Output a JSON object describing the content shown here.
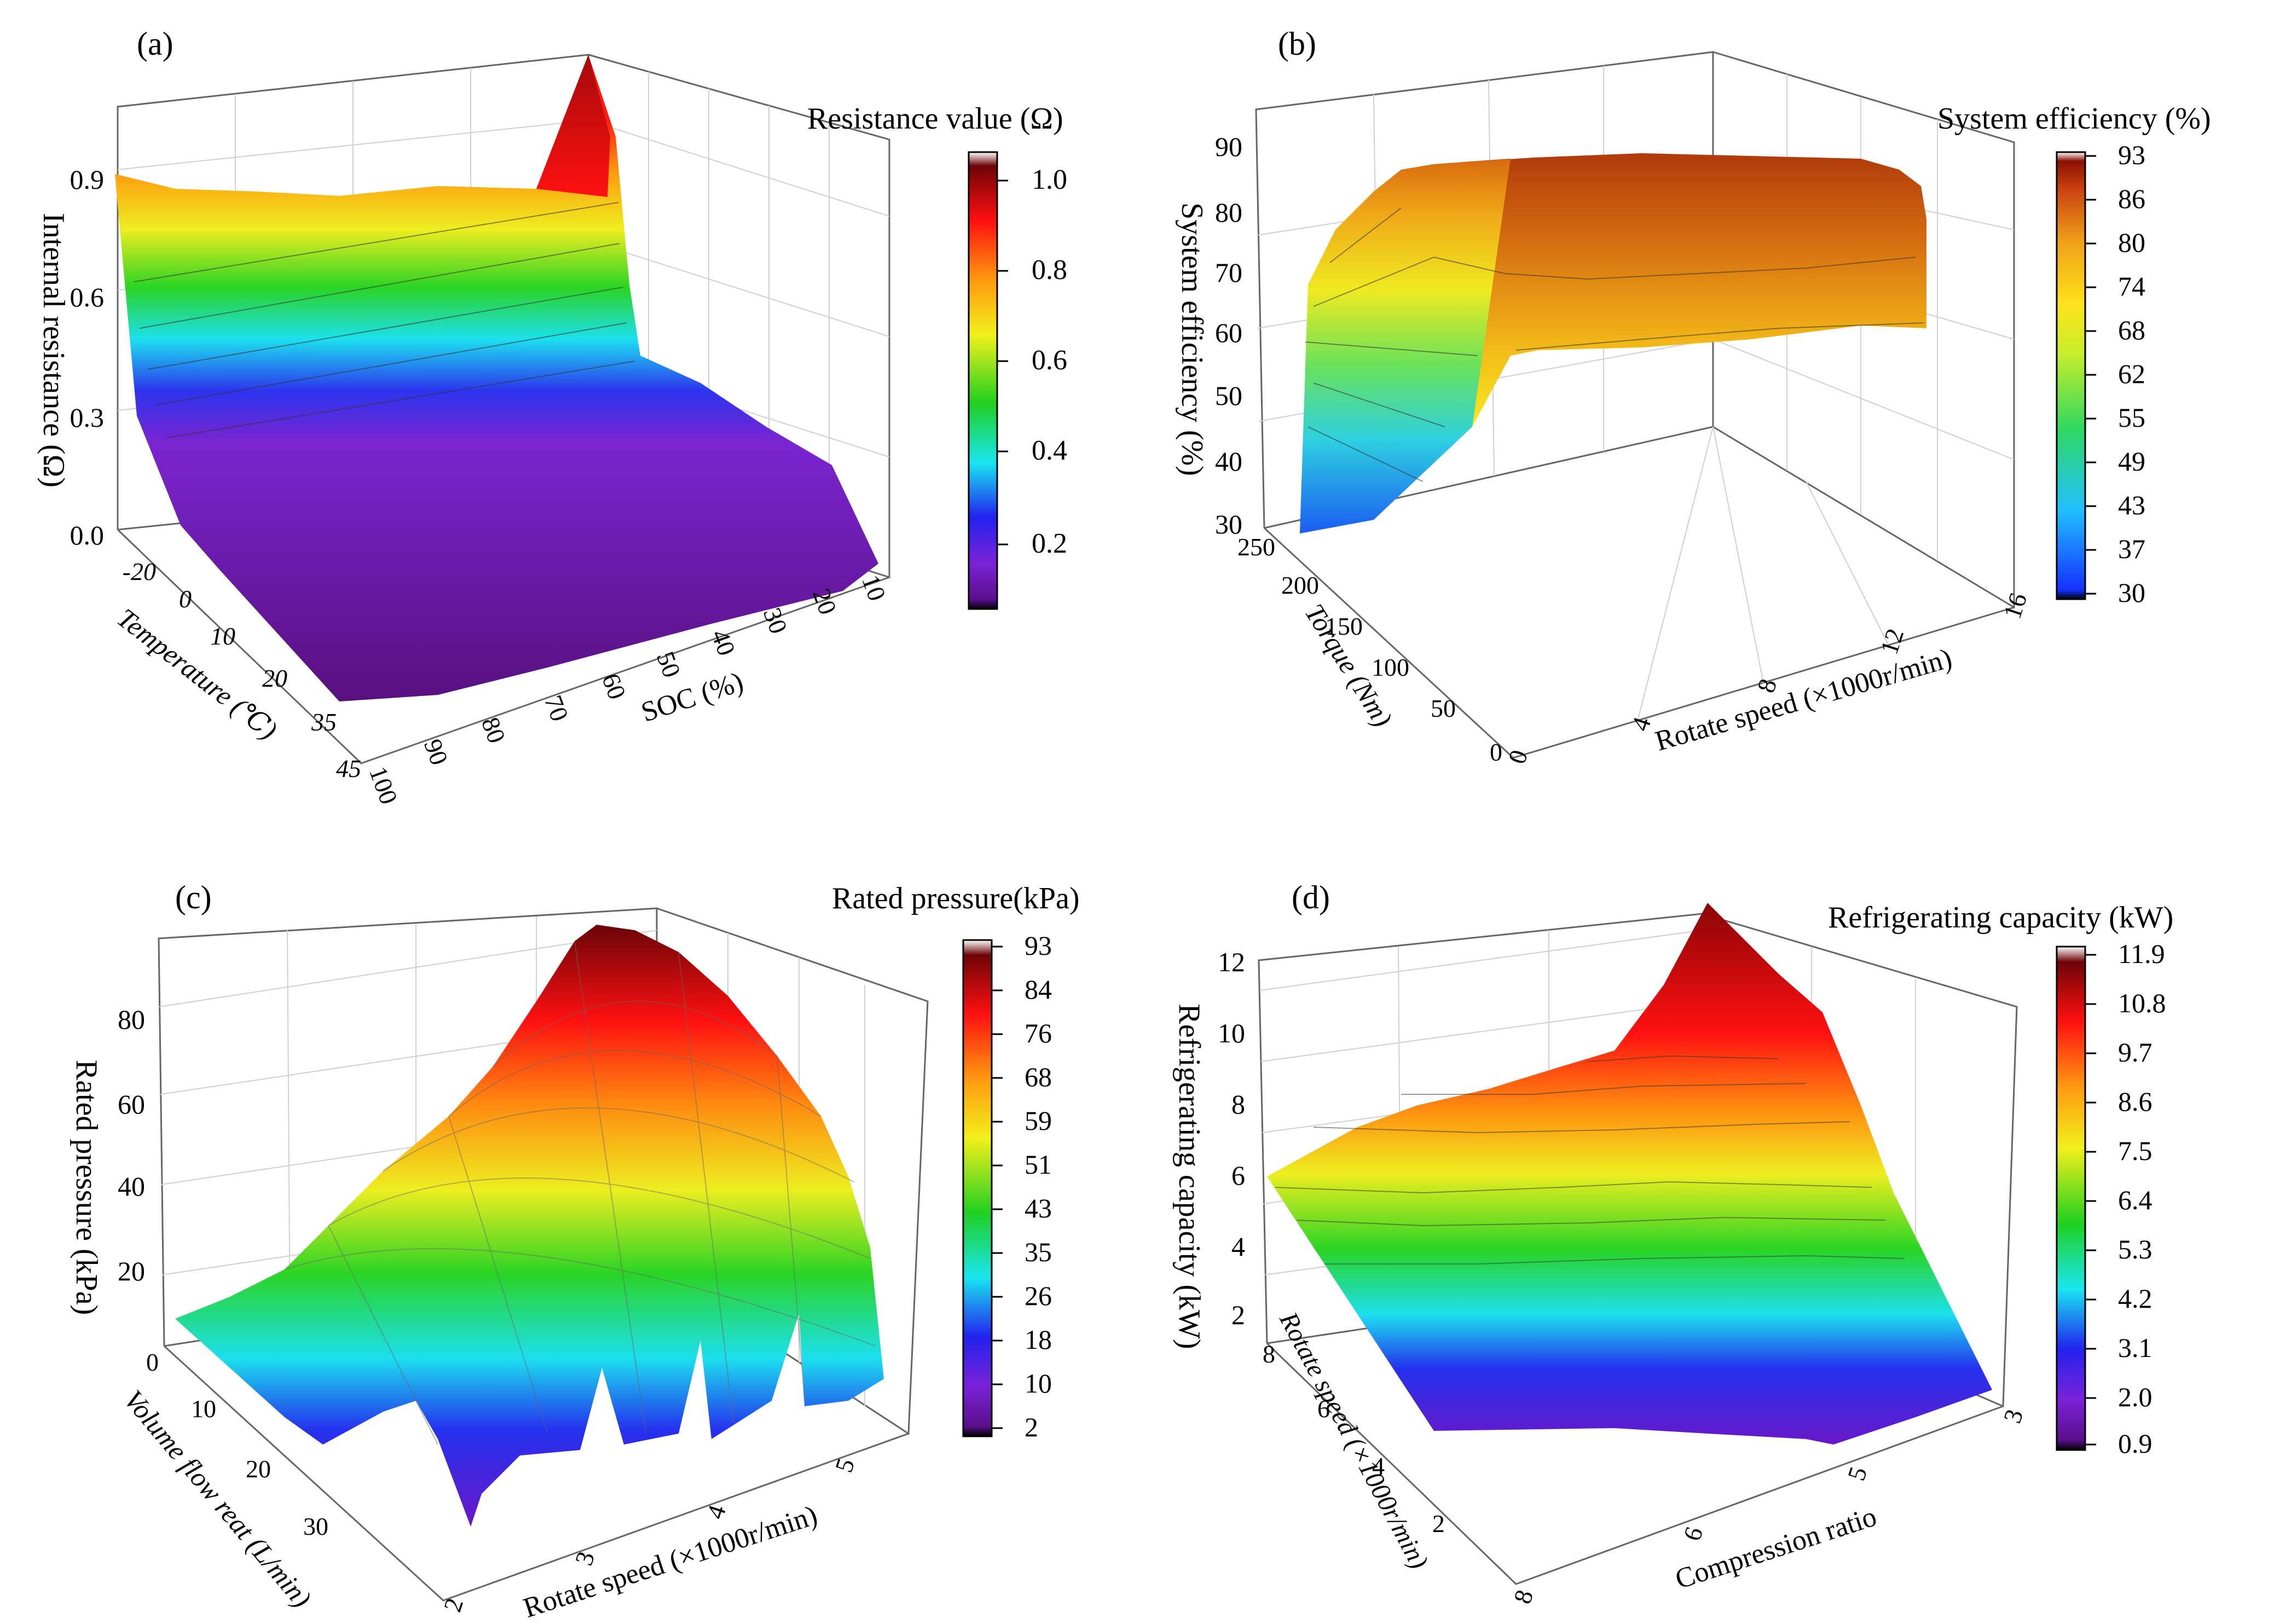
{
  "chart_data": [
    {
      "panel": "(a)",
      "type": "surface3d",
      "colorbar_title": "Resistance value (Ω)",
      "colorbar_ticks": [
        "1.0",
        "0.8",
        "0.6",
        "0.4",
        "0.2"
      ],
      "colorbar_range": [
        0.07,
        1.05
      ],
      "zlabel": "Internal resistance (Ω)",
      "zticks": [
        "0.9",
        "0.6",
        "0.3",
        "0.0"
      ],
      "ylabel": "Temperature (℃)",
      "yticks": [
        "-20",
        "0",
        "10",
        "20",
        "35",
        "45"
      ],
      "xlabel": "SOC (%)",
      "xticks": [
        "100",
        "90",
        "80",
        "70",
        "60",
        "50",
        "40",
        "30",
        "20",
        "10"
      ],
      "back_edge_values": [
        0.92,
        0.88,
        0.87,
        0.86,
        0.88,
        0.87,
        1.05,
        0.3,
        0.15,
        0.12
      ],
      "front_edge_values": [
        0.1,
        0.1,
        0.1,
        0.1,
        0.1,
        0.09,
        0.08,
        0.08,
        0.08,
        0.15
      ]
    },
    {
      "panel": "(b)",
      "type": "surface3d",
      "colorbar_title": "System efficiency (%)",
      "colorbar_ticks": [
        "93",
        "86",
        "80",
        "74",
        "68",
        "62",
        "55",
        "49",
        "43",
        "37",
        "30"
      ],
      "colorbar_range": [
        30,
        93
      ],
      "zlabel": "System efficiency (%)",
      "zticks": [
        "90",
        "80",
        "70",
        "60",
        "50",
        "40",
        "30"
      ],
      "ylabel": "Torque (Nm)",
      "yticks": [
        "250",
        "200",
        "150",
        "100",
        "50",
        "0"
      ],
      "xlabel": "Rotate speed (×1000r/min)",
      "xticks": [
        "0",
        "4",
        "8",
        "12",
        "16"
      ],
      "top_edge_values": [
        83,
        89,
        90,
        89,
        88,
        87
      ],
      "bottom_edge_values": [
        30,
        58,
        60,
        61,
        63,
        65
      ]
    },
    {
      "panel": "(c)",
      "type": "surface3d",
      "colorbar_title": "Rated pressure(kPa)",
      "colorbar_ticks": [
        "93",
        "84",
        "76",
        "68",
        "59",
        "51",
        "43",
        "35",
        "26",
        "18",
        "10",
        "2"
      ],
      "colorbar_range": [
        2,
        93
      ],
      "zlabel": "Rated pressure (kPa)",
      "zticks": [
        "80",
        "60",
        "40",
        "20"
      ],
      "ylabel": "Volume flow reat (L/min)",
      "yticks": [
        "0",
        "10",
        "20",
        "30"
      ],
      "xlabel": "Rotate speed (×1000r/min)",
      "xticks": [
        "2",
        "3",
        "4",
        "5"
      ],
      "peak_value": 93,
      "min_value": 2
    },
    {
      "panel": "(d)",
      "type": "surface3d",
      "colorbar_title": "Refrigerating capacity (kW)",
      "colorbar_ticks": [
        "11.9",
        "10.8",
        "9.7",
        "8.6",
        "7.5",
        "6.4",
        "5.3",
        "4.2",
        "3.1",
        "2.0",
        "0.9"
      ],
      "colorbar_range": [
        0.9,
        11.9
      ],
      "zlabel": "Refrigerating capacity (kW)",
      "zticks": [
        "12",
        "10",
        "8",
        "6",
        "4",
        "2"
      ],
      "ylabel": "Rotate speed (×1000r/min)",
      "yticks": [
        "8",
        "6",
        "4",
        "2"
      ],
      "xlabel": "Compression ratio",
      "xticks": [
        "8",
        "6",
        "5",
        "3"
      ],
      "peak_value": 11.9,
      "min_value": 0.9
    }
  ]
}
